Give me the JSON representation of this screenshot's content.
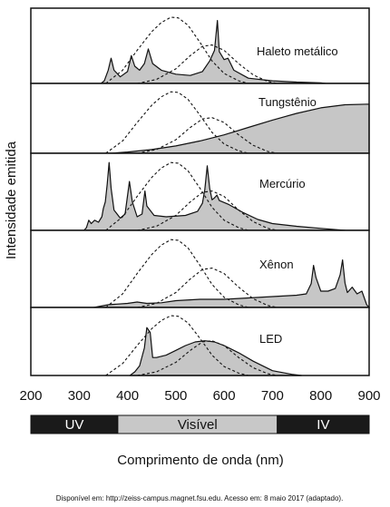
{
  "chart_data": {
    "type": "area",
    "ylabel": "Intensidade emitida",
    "xlabel": "Comprimento de onda (nm)",
    "xlim": [
      200,
      900
    ],
    "xticks": [
      200,
      300,
      400,
      500,
      600,
      700,
      800,
      900
    ],
    "vertical_marker_x": 900,
    "bands": [
      {
        "label": "UV",
        "from": 200,
        "to": 380,
        "color": "#1a1a1a",
        "text_color": "#ffffff"
      },
      {
        "label": "Visível",
        "from": 380,
        "to": 710,
        "color": "#c8c8c8",
        "text_color": "#111111"
      },
      {
        "label": "IV",
        "from": 710,
        "to": 900,
        "color": "#1a1a1a",
        "text_color": "#ffffff"
      }
    ],
    "reference_curves": [
      {
        "points": [
          [
            355,
            0
          ],
          [
            390,
            0.2
          ],
          [
            420,
            0.5
          ],
          [
            450,
            0.78
          ],
          [
            470,
            0.92
          ],
          [
            490,
            1.0
          ],
          [
            505,
            0.99
          ],
          [
            525,
            0.88
          ],
          [
            550,
            0.62
          ],
          [
            575,
            0.34
          ],
          [
            600,
            0.15
          ],
          [
            630,
            0.04
          ],
          [
            650,
            0
          ]
        ]
      },
      {
        "points": [
          [
            420,
            0
          ],
          [
            460,
            0.06
          ],
          [
            500,
            0.22
          ],
          [
            530,
            0.42
          ],
          [
            555,
            0.56
          ],
          [
            575,
            0.58
          ],
          [
            600,
            0.5
          ],
          [
            630,
            0.3
          ],
          [
            660,
            0.13
          ],
          [
            690,
            0.03
          ],
          [
            710,
            0
          ]
        ]
      }
    ],
    "panels": [
      {
        "label": "Haleto metálico",
        "spectrum": [
          [
            345,
            0
          ],
          [
            352,
            0.04
          ],
          [
            360,
            0.2
          ],
          [
            366,
            0.38
          ],
          [
            372,
            0.2
          ],
          [
            385,
            0.1
          ],
          [
            400,
            0.18
          ],
          [
            408,
            0.42
          ],
          [
            415,
            0.26
          ],
          [
            425,
            0.2
          ],
          [
            435,
            0.3
          ],
          [
            443,
            0.52
          ],
          [
            452,
            0.3
          ],
          [
            470,
            0.2
          ],
          [
            500,
            0.14
          ],
          [
            530,
            0.12
          ],
          [
            555,
            0.18
          ],
          [
            570,
            0.34
          ],
          [
            580,
            0.5
          ],
          [
            586,
            0.95
          ],
          [
            590,
            0.48
          ],
          [
            600,
            0.36
          ],
          [
            608,
            0.38
          ],
          [
            620,
            0.2
          ],
          [
            650,
            0.08
          ],
          [
            700,
            0.04
          ],
          [
            750,
            0.02
          ],
          [
            800,
            0.01
          ],
          [
            810,
            0
          ]
        ]
      },
      {
        "label": "Tungstênio",
        "spectrum": [
          [
            365,
            0
          ],
          [
            400,
            0.02
          ],
          [
            450,
            0.06
          ],
          [
            500,
            0.12
          ],
          [
            550,
            0.2
          ],
          [
            600,
            0.3
          ],
          [
            650,
            0.42
          ],
          [
            700,
            0.54
          ],
          [
            750,
            0.65
          ],
          [
            800,
            0.74
          ],
          [
            850,
            0.79
          ],
          [
            900,
            0.8
          ]
        ]
      },
      {
        "label": "Mercúrio",
        "spectrum": [
          [
            310,
            0
          ],
          [
            315,
            0.04
          ],
          [
            320,
            0.15
          ],
          [
            325,
            0.1
          ],
          [
            332,
            0.15
          ],
          [
            340,
            0.12
          ],
          [
            347,
            0.2
          ],
          [
            350,
            0.32
          ],
          [
            354,
            0.42
          ],
          [
            358,
            0.68
          ],
          [
            362,
            1.0
          ],
          [
            366,
            0.62
          ],
          [
            372,
            0.3
          ],
          [
            385,
            0.18
          ],
          [
            395,
            0.24
          ],
          [
            404,
            0.72
          ],
          [
            410,
            0.42
          ],
          [
            420,
            0.2
          ],
          [
            430,
            0.24
          ],
          [
            436,
            0.58
          ],
          [
            440,
            0.36
          ],
          [
            455,
            0.22
          ],
          [
            480,
            0.2
          ],
          [
            520,
            0.22
          ],
          [
            545,
            0.28
          ],
          [
            555,
            0.4
          ],
          [
            560,
            0.6
          ],
          [
            565,
            0.95
          ],
          [
            570,
            0.62
          ],
          [
            575,
            0.45
          ],
          [
            580,
            0.48
          ],
          [
            585,
            0.52
          ],
          [
            590,
            0.44
          ],
          [
            610,
            0.38
          ],
          [
            640,
            0.26
          ],
          [
            670,
            0.16
          ],
          [
            700,
            0.1
          ],
          [
            750,
            0.06
          ],
          [
            800,
            0.03
          ],
          [
            850,
            0
          ]
        ]
      },
      {
        "label": "Xênon",
        "spectrum": [
          [
            330,
            0
          ],
          [
            360,
            0.04
          ],
          [
            400,
            0.06
          ],
          [
            420,
            0.08
          ],
          [
            440,
            0.06
          ],
          [
            470,
            0.07
          ],
          [
            500,
            0.1
          ],
          [
            550,
            0.12
          ],
          [
            600,
            0.12
          ],
          [
            650,
            0.14
          ],
          [
            700,
            0.16
          ],
          [
            750,
            0.18
          ],
          [
            770,
            0.2
          ],
          [
            780,
            0.35
          ],
          [
            785,
            0.62
          ],
          [
            790,
            0.44
          ],
          [
            800,
            0.24
          ],
          [
            815,
            0.24
          ],
          [
            830,
            0.28
          ],
          [
            840,
            0.48
          ],
          [
            845,
            0.7
          ],
          [
            850,
            0.36
          ],
          [
            855,
            0.22
          ],
          [
            865,
            0.3
          ],
          [
            875,
            0.2
          ],
          [
            885,
            0.24
          ],
          [
            895,
            0.04
          ],
          [
            900,
            0
          ]
        ]
      },
      {
        "label": "LED",
        "spectrum": [
          [
            405,
            0
          ],
          [
            415,
            0.06
          ],
          [
            425,
            0.16
          ],
          [
            435,
            0.46
          ],
          [
            440,
            0.8
          ],
          [
            447,
            0.72
          ],
          [
            452,
            0.3
          ],
          [
            460,
            0.3
          ],
          [
            480,
            0.34
          ],
          [
            500,
            0.42
          ],
          [
            520,
            0.5
          ],
          [
            540,
            0.56
          ],
          [
            560,
            0.58
          ],
          [
            580,
            0.56
          ],
          [
            600,
            0.5
          ],
          [
            630,
            0.38
          ],
          [
            660,
            0.24
          ],
          [
            700,
            0.08
          ],
          [
            740,
            0.02
          ],
          [
            760,
            0
          ]
        ]
      }
    ],
    "source_text": "Disponível em: http://zeiss-campus.magnet.fsu.edu. Acesso em: 8 maio 2017 (adaptado)."
  }
}
